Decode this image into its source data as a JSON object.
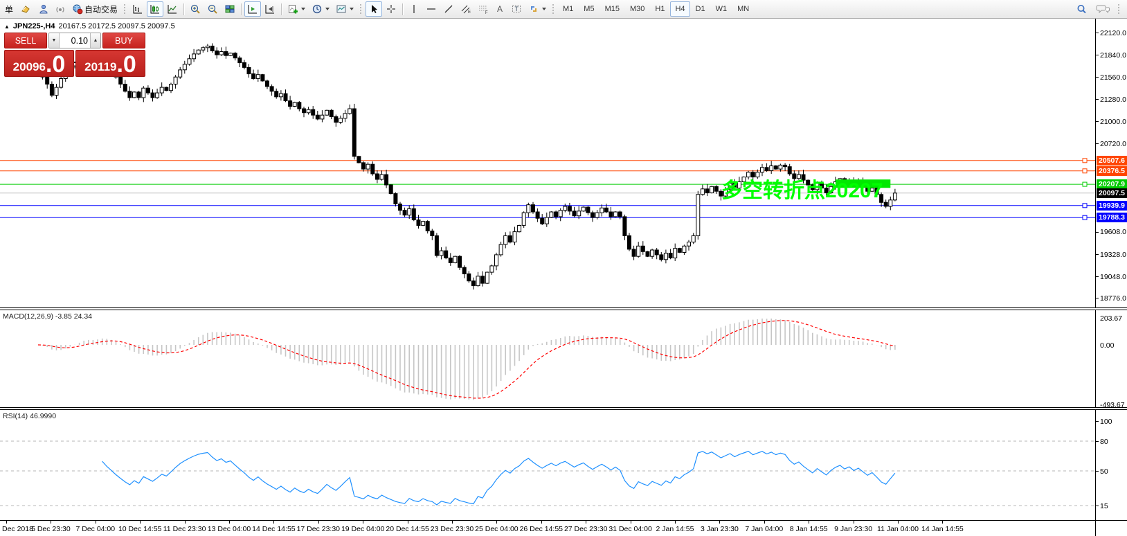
{
  "toolbar": {
    "partial_button": "单",
    "autotrade": "自动交易",
    "timeframes": [
      "M1",
      "M5",
      "M15",
      "M30",
      "H1",
      "H4",
      "D1",
      "W1",
      "MN"
    ],
    "active_timeframe": "H4"
  },
  "chart_header": {
    "marker": "▲",
    "symbol_period": "JPN225-,H4",
    "ohlc": "20167.5 20172.5 20097.5 20097.5"
  },
  "one_click": {
    "sell_label": "SELL",
    "buy_label": "BUY",
    "volume": "0.10",
    "sell_int": "20096",
    "sell_pip": ".0",
    "buy_int": "20119",
    "buy_pip": ".0"
  },
  "price_axis": {
    "ticks": [
      {
        "label": "22120.0",
        "price": 22120
      },
      {
        "label": "21840.0",
        "price": 21840
      },
      {
        "label": "21560.0",
        "price": 21560
      },
      {
        "label": "21280.0",
        "price": 21280
      },
      {
        "label": "21000.0",
        "price": 21000
      },
      {
        "label": "20720.0",
        "price": 20720
      },
      {
        "label": "19608.0",
        "price": 19608
      },
      {
        "label": "19328.0",
        "price": 19328
      },
      {
        "label": "19048.0",
        "price": 19048
      },
      {
        "label": "18776.0",
        "price": 18776
      }
    ],
    "badges": [
      {
        "label": "20507.6",
        "price": 20507.6,
        "color": "#FF4500",
        "line_color": "#FF4500",
        "handle": true
      },
      {
        "label": "20376.5",
        "price": 20376.5,
        "color": "#FF4500",
        "line_color": "#FF4500",
        "handle": true
      },
      {
        "label": "20207.9",
        "price": 20207.9,
        "color": "#00CC00",
        "line_color": "#00CC00",
        "handle": true
      },
      {
        "label": "20097.5",
        "price": 20097.5,
        "color": "#000000",
        "line_color": "#C0C0C0",
        "handle": false
      },
      {
        "label": "19939.9",
        "price": 19939.9,
        "color": "#0000FF",
        "line_color": "#0000FF",
        "handle": true
      },
      {
        "label": "19788.3",
        "price": 19788.3,
        "color": "#0000FF",
        "line_color": "#0000FF",
        "handle": true
      }
    ]
  },
  "annotations": {
    "text": "多空转折点20207",
    "text_color": "#00FF00",
    "box_color": "#00E800"
  },
  "macd_panel": {
    "label": "MACD(12,26,9)",
    "values": "-3.85 24.34",
    "scale": [
      "203.67",
      "0.00",
      "-493.67"
    ]
  },
  "rsi_panel": {
    "label": "RSI(14)",
    "values": "46.9990",
    "scale": [
      {
        "label": "100",
        "value": 100
      },
      {
        "label": "80",
        "value": 80
      },
      {
        "label": "50",
        "value": 50
      },
      {
        "label": "15",
        "value": 15
      }
    ]
  },
  "time_axis": [
    "Dec 2018",
    "5 Dec 23:30",
    "7 Dec 04:00",
    "10 Dec 14:55",
    "11 Dec 23:30",
    "13 Dec 04:00",
    "14 Dec 14:55",
    "17 Dec 23:30",
    "19 Dec 04:00",
    "20 Dec 14:55",
    "23 Dec 23:30",
    "25 Dec 04:00",
    "26 Dec 14:55",
    "27 Dec 23:30",
    "31 Dec 04:00",
    "2 Jan 14:55",
    "3 Jan 23:30",
    "7 Jan 04:00",
    "8 Jan 14:55",
    "9 Jan 23:30",
    "11 Jan 04:00",
    "14 Jan 14:55"
  ],
  "chart_data": {
    "type": "candlestick",
    "symbol": "JPN225-",
    "timeframe": "H4",
    "ohlc_current": {
      "open": 20167.5,
      "high": 20172.5,
      "low": 20097.5,
      "close": 20097.5
    },
    "closes": [
      21620,
      21560,
      21470,
      21330,
      21430,
      21540,
      21630,
      21700,
      21740,
      21790,
      21830,
      21760,
      21700,
      21770,
      21820,
      21730,
      21650,
      21560,
      21470,
      21380,
      21300,
      21370,
      21300,
      21420,
      21360,
      21300,
      21360,
      21430,
      21390,
      21470,
      21560,
      21650,
      21720,
      21790,
      21850,
      21900,
      21930,
      21950,
      21890,
      21840,
      21880,
      21830,
      21860,
      21800,
      21740,
      21680,
      21600,
      21540,
      21590,
      21510,
      21440,
      21380,
      21310,
      21350,
      21260,
      21190,
      21240,
      21160,
      21110,
      21150,
      21080,
      21030,
      21080,
      21140,
      21060,
      20990,
      21040,
      21100,
      21160,
      20560,
      20480,
      20400,
      20460,
      20340,
      20270,
      20330,
      20200,
      20090,
      19960,
      19880,
      19820,
      19900,
      19760,
      19690,
      19740,
      19620,
      19560,
      19310,
      19370,
      19280,
      19220,
      19300,
      19160,
      19080,
      18990,
      18930,
      19050,
      18960,
      19100,
      19180,
      19320,
      19450,
      19560,
      19480,
      19610,
      19690,
      19850,
      19950,
      19860,
      19780,
      19710,
      19790,
      19860,
      19800,
      19880,
      19930,
      19870,
      19810,
      19870,
      19920,
      19850,
      19790,
      19850,
      19910,
      19860,
      19800,
      19860,
      19800,
      19560,
      19390,
      19300,
      19430,
      19360,
      19300,
      19380,
      19320,
      19260,
      19340,
      19280,
      19400,
      19350,
      19430,
      19480,
      19560,
      20080,
      20150,
      20100,
      20180,
      20120,
      20060,
      20140,
      20220,
      20160,
      20240,
      20300,
      20360,
      20300,
      20360,
      20420,
      20380,
      20440,
      20400,
      20450,
      20430,
      20340,
      20280,
      20330,
      20260,
      20200,
      20140,
      20220,
      20160,
      20100,
      20180,
      20240,
      20280,
      20220,
      20260,
      20200,
      20240,
      20180,
      20120,
      20160,
      20080,
      19980,
      19930,
      20010,
      20097.5
    ],
    "macd": {
      "fast": 12,
      "slow": 26,
      "signal": 9,
      "current_macd": -3.85,
      "current_signal": 24.34,
      "axis_max": 203.67,
      "axis_min": -493.67
    },
    "rsi": {
      "period": 14,
      "current": 46.999,
      "levels": [
        80,
        50,
        15
      ],
      "axis_max": 100
    },
    "highlight_box": {
      "from_index": 174,
      "to_index": 186,
      "price_top": 20268,
      "price_bottom": 20162
    }
  },
  "colors": {
    "candle_up": "#FFFFFF",
    "candle_down": "#000000",
    "candle_border": "#000000",
    "macd_hist": "#C6C6C6",
    "macd_signal": "#FF0000",
    "rsi_line": "#1E90FF",
    "panel_red": "#C6211D",
    "current_price_line": "#C0C0C0"
  }
}
